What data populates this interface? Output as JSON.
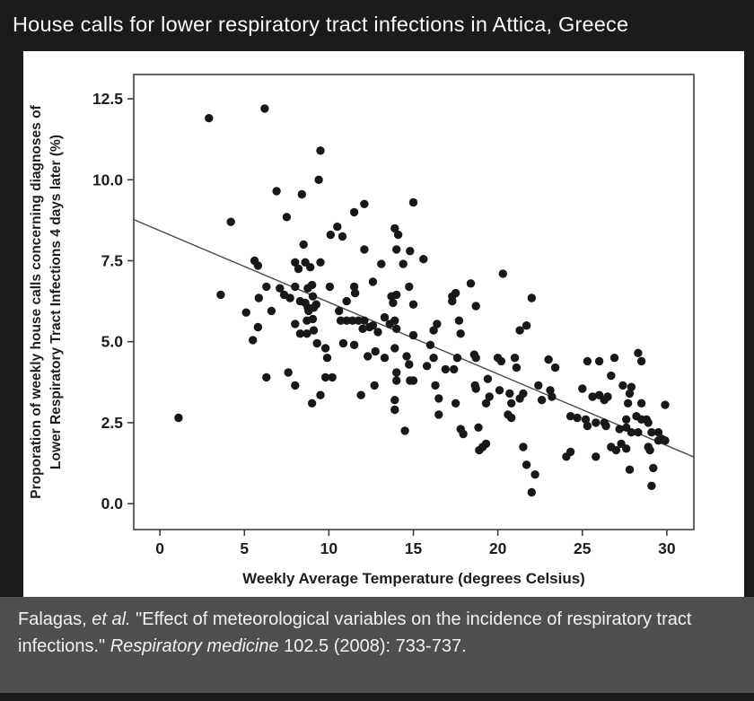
{
  "slide": {
    "title": "House calls for lower respiratory tract infections in Attica, Greece",
    "background_color": "#1b1b1b",
    "caption_band_color": "#4f4f4f"
  },
  "caption": {
    "segments": [
      {
        "text": "Falagas, ",
        "italic": false
      },
      {
        "text": "et al.",
        "italic": true
      },
      {
        "text": " \"Effect of meteorological variables on the incidence of respiratory tract infections.\" ",
        "italic": false
      },
      {
        "text": "Respiratory medicine",
        "italic": true
      },
      {
        "text": " 102.5 (2008): 733-737.",
        "italic": false
      }
    ]
  },
  "chart_data": {
    "type": "scatter",
    "title": "",
    "xlabel": "Weekly Average Temperature (degrees Celsius)",
    "ylabel_lines": [
      "Proporation of weekly house calls concerning diagnoses of",
      "Lower Respiratory Tract Infections 4 days later (%)"
    ],
    "x_ticks": [
      0,
      5,
      10,
      15,
      20,
      25,
      30
    ],
    "y_ticks": [
      0.0,
      2.5,
      5.0,
      7.5,
      10.0,
      12.5
    ],
    "xlim": [
      -1.55,
      31.6
    ],
    "ylim": [
      -0.8,
      13.25
    ],
    "grid": false,
    "legend": null,
    "point_color": "#181818",
    "axis_color": "#3f3f3f",
    "text_color": "#1d1d1d",
    "trendline": {
      "x1": -1.55,
      "y1": 8.77,
      "x2": 31.6,
      "y2": 1.44,
      "color": "#4a4a4a"
    },
    "points": [
      [
        2.9,
        11.9
      ],
      [
        6.2,
        12.2
      ],
      [
        9.5,
        10.9
      ],
      [
        9.4,
        10.0
      ],
      [
        6.9,
        9.65
      ],
      [
        8.4,
        9.55
      ],
      [
        12.1,
        9.25
      ],
      [
        15.0,
        9.3
      ],
      [
        11.5,
        9.0
      ],
      [
        4.2,
        8.7
      ],
      [
        7.5,
        8.85
      ],
      [
        10.5,
        8.55
      ],
      [
        10.8,
        8.25
      ],
      [
        10.1,
        8.3
      ],
      [
        13.9,
        8.5
      ],
      [
        14.1,
        8.3
      ],
      [
        8.5,
        8.0
      ],
      [
        8.6,
        7.45
      ],
      [
        9.5,
        7.45
      ],
      [
        5.6,
        7.5
      ],
      [
        5.8,
        7.35
      ],
      [
        8.0,
        7.45
      ],
      [
        8.2,
        7.25
      ],
      [
        8.9,
        7.3
      ],
      [
        12.1,
        7.85
      ],
      [
        13.1,
        7.4
      ],
      [
        12.6,
        6.85
      ],
      [
        11.5,
        6.7
      ],
      [
        14.0,
        7.85
      ],
      [
        14.8,
        7.8
      ],
      [
        14.4,
        7.4
      ],
      [
        15.6,
        7.55
      ],
      [
        20.3,
        7.1
      ],
      [
        18.4,
        6.8
      ],
      [
        3.6,
        6.45
      ],
      [
        5.85,
        6.35
      ],
      [
        6.3,
        6.7
      ],
      [
        5.1,
        5.9
      ],
      [
        6.6,
        5.95
      ],
      [
        7.1,
        6.65
      ],
      [
        7.35,
        6.45
      ],
      [
        7.7,
        6.35
      ],
      [
        8.0,
        6.7
      ],
      [
        8.3,
        6.25
      ],
      [
        8.6,
        6.2
      ],
      [
        8.75,
        6.65
      ],
      [
        9.0,
        6.75
      ],
      [
        9.05,
        6.4
      ],
      [
        9.25,
        6.15
      ],
      [
        8.75,
        6.05
      ],
      [
        8.8,
        5.95
      ],
      [
        9.1,
        6.05
      ],
      [
        10.05,
        6.7
      ],
      [
        10.6,
        5.95
      ],
      [
        11.05,
        6.25
      ],
      [
        11.55,
        6.5
      ],
      [
        13.3,
        5.75
      ],
      [
        13.7,
        6.4
      ],
      [
        13.8,
        6.2
      ],
      [
        14.0,
        6.45
      ],
      [
        15.0,
        6.15
      ],
      [
        14.75,
        6.7
      ],
      [
        17.5,
        6.5
      ],
      [
        17.3,
        6.4
      ],
      [
        17.3,
        6.25
      ],
      [
        18.7,
        6.1
      ],
      [
        22.0,
        6.35
      ],
      [
        17.7,
        5.65
      ],
      [
        21.3,
        5.35
      ],
      [
        21.7,
        5.5
      ],
      [
        5.8,
        5.45
      ],
      [
        5.5,
        5.05
      ],
      [
        8.0,
        5.55
      ],
      [
        8.7,
        5.65
      ],
      [
        9.05,
        5.7
      ],
      [
        8.3,
        5.25
      ],
      [
        8.7,
        5.25
      ],
      [
        9.1,
        5.35
      ],
      [
        9.3,
        4.95
      ],
      [
        9.8,
        4.8
      ],
      [
        9.9,
        4.5
      ],
      [
        10.85,
        4.95
      ],
      [
        11.5,
        4.9
      ],
      [
        10.7,
        5.65
      ],
      [
        11.05,
        5.65
      ],
      [
        11.4,
        5.65
      ],
      [
        11.75,
        5.65
      ],
      [
        12.1,
        5.65
      ],
      [
        12.0,
        5.4
      ],
      [
        12.4,
        5.45
      ],
      [
        12.6,
        5.5
      ],
      [
        12.9,
        5.3
      ],
      [
        13.6,
        5.55
      ],
      [
        13.9,
        5.65
      ],
      [
        14.0,
        5.4
      ],
      [
        15.0,
        5.2
      ],
      [
        12.3,
        4.55
      ],
      [
        12.75,
        4.7
      ],
      [
        13.3,
        4.5
      ],
      [
        13.9,
        4.8
      ],
      [
        14.6,
        4.55
      ],
      [
        14.75,
        4.3
      ],
      [
        14.0,
        4.05
      ],
      [
        14.8,
        3.8
      ],
      [
        14.0,
        3.8
      ],
      [
        9.8,
        3.9
      ],
      [
        10.2,
        3.9
      ],
      [
        7.6,
        4.05
      ],
      [
        8.0,
        3.65
      ],
      [
        6.3,
        3.9
      ],
      [
        9.0,
        3.1
      ],
      [
        9.5,
        3.35
      ],
      [
        11.9,
        3.35
      ],
      [
        12.7,
        3.65
      ],
      [
        13.9,
        3.2
      ],
      [
        13.9,
        2.9
      ],
      [
        14.5,
        2.25
      ],
      [
        1.1,
        2.65
      ],
      [
        16.4,
        5.55
      ],
      [
        16.2,
        5.35
      ],
      [
        17.8,
        5.25
      ],
      [
        16.0,
        4.9
      ],
      [
        16.2,
        4.5
      ],
      [
        15.8,
        4.25
      ],
      [
        16.9,
        4.15
      ],
      [
        17.4,
        4.15
      ],
      [
        17.6,
        4.5
      ],
      [
        18.6,
        4.6
      ],
      [
        18.7,
        4.5
      ],
      [
        20.0,
        4.5
      ],
      [
        20.2,
        4.4
      ],
      [
        21.0,
        4.5
      ],
      [
        21.1,
        4.2
      ],
      [
        23.0,
        4.45
      ],
      [
        23.4,
        4.2
      ],
      [
        25.3,
        4.4
      ],
      [
        26.0,
        4.4
      ],
      [
        26.9,
        4.5
      ],
      [
        28.3,
        4.65
      ],
      [
        28.5,
        4.4
      ],
      [
        26.7,
        3.95
      ],
      [
        15.0,
        3.8
      ],
      [
        16.3,
        3.65
      ],
      [
        16.5,
        3.25
      ],
      [
        16.5,
        2.75
      ],
      [
        17.5,
        3.1
      ],
      [
        18.65,
        3.65
      ],
      [
        18.7,
        3.55
      ],
      [
        19.4,
        3.85
      ],
      [
        19.5,
        3.3
      ],
      [
        19.3,
        3.1
      ],
      [
        20.1,
        3.5
      ],
      [
        20.7,
        3.4
      ],
      [
        20.8,
        3.1
      ],
      [
        21.3,
        3.25
      ],
      [
        21.5,
        3.4
      ],
      [
        22.4,
        3.65
      ],
      [
        22.6,
        3.2
      ],
      [
        23.1,
        3.5
      ],
      [
        23.2,
        3.3
      ],
      [
        25.0,
        3.55
      ],
      [
        25.6,
        3.3
      ],
      [
        26.0,
        3.35
      ],
      [
        26.3,
        3.2
      ],
      [
        26.5,
        3.3
      ],
      [
        27.4,
        3.65
      ],
      [
        27.8,
        3.4
      ],
      [
        27.9,
        3.6
      ],
      [
        27.7,
        3.1
      ],
      [
        28.5,
        3.1
      ],
      [
        29.9,
        3.05
      ],
      [
        28.2,
        2.7
      ],
      [
        27.6,
        2.6
      ],
      [
        24.3,
        2.7
      ],
      [
        24.7,
        2.65
      ],
      [
        25.2,
        2.6
      ],
      [
        25.3,
        2.4
      ],
      [
        25.8,
        2.5
      ],
      [
        26.3,
        2.5
      ],
      [
        26.4,
        2.4
      ],
      [
        27.2,
        2.3
      ],
      [
        27.6,
        2.35
      ],
      [
        27.9,
        2.2
      ],
      [
        28.3,
        2.2
      ],
      [
        28.5,
        2.6
      ],
      [
        28.8,
        2.6
      ],
      [
        28.9,
        2.5
      ],
      [
        29.1,
        2.2
      ],
      [
        29.5,
        2.2
      ],
      [
        29.7,
        2.0
      ],
      [
        29.9,
        1.95
      ],
      [
        29.5,
        1.95
      ],
      [
        28.9,
        1.75
      ],
      [
        29.0,
        1.65
      ],
      [
        24.3,
        1.6
      ],
      [
        25.8,
        1.45
      ],
      [
        26.7,
        1.75
      ],
      [
        27.0,
        1.65
      ],
      [
        27.3,
        1.85
      ],
      [
        27.6,
        1.7
      ],
      [
        27.8,
        1.05
      ],
      [
        29.1,
        0.55
      ],
      [
        29.2,
        1.1
      ],
      [
        21.5,
        1.75
      ],
      [
        20.6,
        2.75
      ],
      [
        20.8,
        2.65
      ],
      [
        17.8,
        2.3
      ],
      [
        17.95,
        2.15
      ],
      [
        18.85,
        2.35
      ],
      [
        19.1,
        1.75
      ],
      [
        19.3,
        1.85
      ],
      [
        18.9,
        1.65
      ],
      [
        21.7,
        1.2
      ],
      [
        22.2,
        0.9
      ],
      [
        22.0,
        0.35
      ],
      [
        24.05,
        1.45
      ]
    ]
  }
}
